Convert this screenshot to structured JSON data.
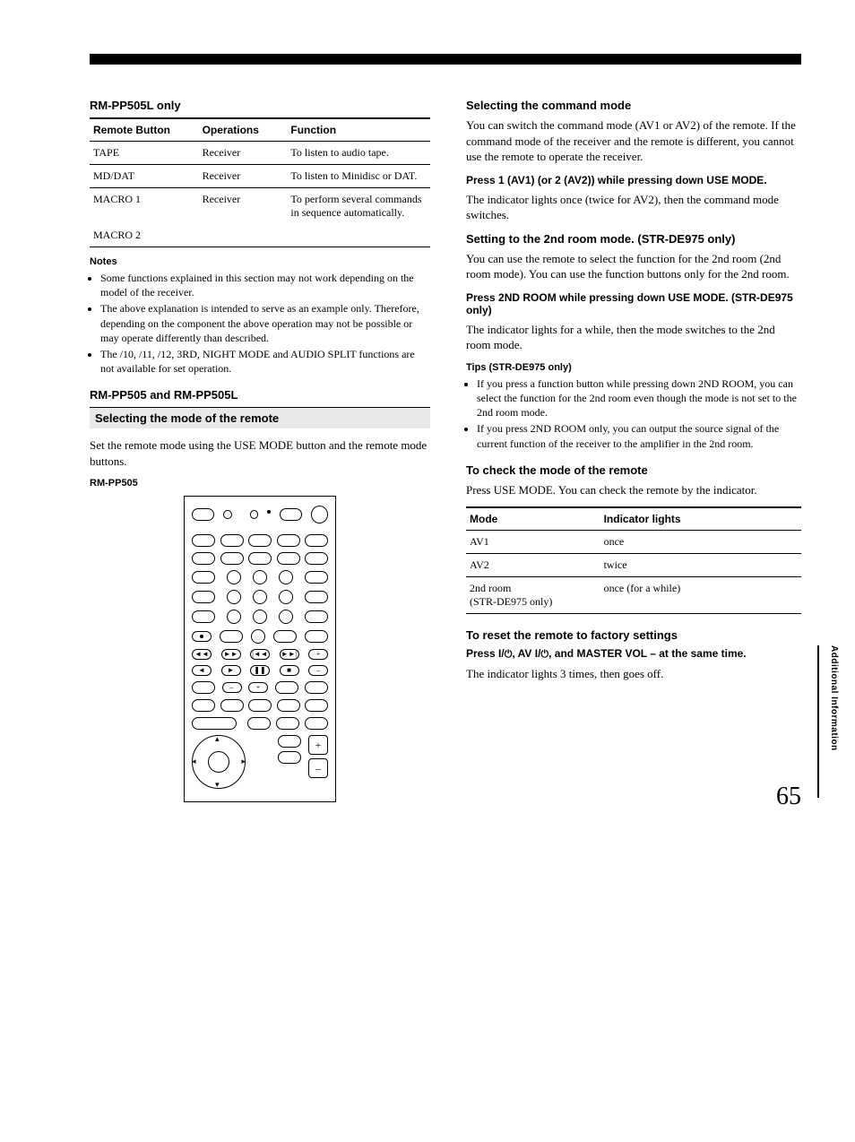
{
  "left": {
    "title1": "RM-PP505L only",
    "table1": {
      "headers": [
        "Remote Button",
        "Operations",
        "Function"
      ],
      "rows": [
        {
          "cells": [
            "TAPE",
            "Receiver",
            "To listen to audio tape."
          ],
          "border": true
        },
        {
          "cells": [
            "MD/DAT",
            "Receiver",
            "To listen to Minidisc or DAT."
          ],
          "border": true
        },
        {
          "cells": [
            "MACRO 1",
            "Receiver",
            "To perform several commands in sequence automatically."
          ],
          "border": false
        },
        {
          "cells": [
            "MACRO 2",
            "",
            ""
          ],
          "border": true
        }
      ]
    },
    "notes_label": "Notes",
    "notes": [
      "Some functions explained in this section may not work depending on the model of the receiver.",
      "The above explanation is intended to serve as an example only. Therefore, depending on the component the above operation may not be possible or may operate differently than described.",
      "The /10, /11, /12, 3RD, NIGHT MODE and AUDIO SPLIT functions are not available for set operation."
    ],
    "title2": "RM-PP505 and RM-PP505L",
    "section_heading": "Selecting the mode of the remote",
    "section_body": "Set the remote mode using the USE MODE button and the remote mode buttons.",
    "remote_label": "RM-PP505"
  },
  "right": {
    "h1": "Selecting the command mode",
    "p1": "You can switch the command mode (AV1 or AV2) of the remote. If the command mode of the receiver and the remote is different, you cannot use the remote to operate the receiver.",
    "h2": "Press 1 (AV1) (or 2 (AV2)) while pressing down USE MODE.",
    "p2": "The indicator lights once (twice for AV2), then the command mode switches.",
    "h3": "Setting to the 2nd room mode. (STR-DE975 only)",
    "p3": "You can use the remote to select the function for the 2nd room (2nd room mode). You can use the function buttons only for the 2nd room.",
    "h4": "Press 2ND ROOM while pressing down USE MODE. (STR-DE975 only)",
    "p4": "The indicator lights for a while, then the mode switches to the 2nd room mode.",
    "tips_label": "Tips (STR-DE975 only)",
    "tips": [
      "If you press a function button while pressing down 2ND ROOM, you can select the function for the 2nd room even though the mode is not set to the 2nd room mode.",
      "If you press 2ND ROOM only, you can output the source signal of the current function of the receiver to the amplifier in the 2nd room."
    ],
    "h5": "To check the mode of the remote",
    "p5": "Press USE MODE. You can check the remote by the indicator.",
    "table2": {
      "headers": [
        "Mode",
        "Indicator lights"
      ],
      "rows": [
        [
          "AV1",
          "once"
        ],
        [
          "AV2",
          "twice"
        ],
        [
          "2nd room\n(STR-DE975 only)",
          "once (for a while)"
        ]
      ]
    },
    "h6": "To reset the remote to factory settings",
    "h7a": "Press I/",
    "h7b": ", AV I/",
    "h7c": ", and MASTER VOL – at the same time.",
    "p6": "The indicator lights 3 times, then goes off."
  },
  "side_label": "Additional Information",
  "page_number": "65"
}
